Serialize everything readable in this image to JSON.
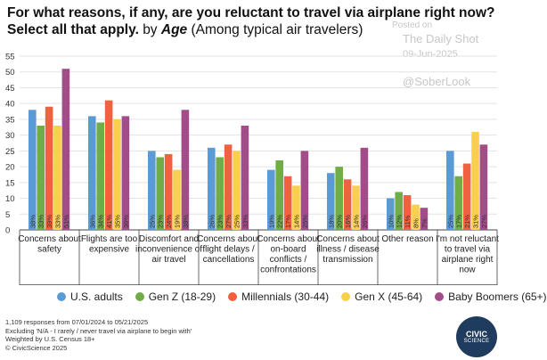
{
  "title": {
    "main": "For what reasons, if any, are you reluctant to travel via airplane right now? Select all that apply.",
    "by": "by",
    "age_word": "Age",
    "subtitle": "(Among typical air travelers)"
  },
  "watermarks": {
    "posted_on": "Posted on",
    "source": "The Daily Shot",
    "date": "09-Jun-2025",
    "handle": "@SoberLook"
  },
  "legend": [
    {
      "name": "U.S. adults",
      "color": "#5b9bd5"
    },
    {
      "name": "Gen Z (18-29)",
      "color": "#70ad47"
    },
    {
      "name": "Millennials (30-44)",
      "color": "#f0613f"
    },
    {
      "name": "Gen X (45-64)",
      "color": "#f8cf4f"
    },
    {
      "name": "Baby Boomers (65+)",
      "color": "#a24d8a"
    }
  ],
  "notes": [
    "1,109 responses from 07/01/2024 to 05/21/2025",
    "Excluding 'N/A - I rarely / never travel via airplane to begin with'",
    "Weighted by U.S. Census 18+",
    "© CivicScience 2025"
  ],
  "logo": {
    "line1": "CIVIC",
    "line2": "SCIENCE"
  },
  "chart_data": {
    "type": "bar",
    "ylim": [
      0,
      55
    ],
    "yticks": [
      0,
      5,
      10,
      15,
      20,
      25,
      30,
      35,
      40,
      45,
      50,
      55
    ],
    "grid": true,
    "legend_position": "bottom",
    "categories": [
      [
        "Concerns about",
        "safety"
      ],
      [
        "Flights are too",
        "expensive"
      ],
      [
        "Discomfort and",
        "inconvenience of",
        "air travel"
      ],
      [
        "Concerns about",
        "flight delays /",
        "cancellations"
      ],
      [
        "Concerns about",
        "on-board",
        "conflicts /",
        "confrontations"
      ],
      [
        "Concerns about",
        "illness / disease",
        "transmission"
      ],
      [
        "Other reason"
      ],
      [
        "I'm not reluctant",
        "to travel via",
        "airplane right",
        "now"
      ]
    ],
    "series": [
      {
        "name": "U.S. adults",
        "color": "#5b9bd5",
        "values": [
          38,
          36,
          25,
          26,
          19,
          18,
          10,
          25
        ],
        "labels": [
          "38%",
          "36%",
          "25%",
          "26%",
          "19%",
          "18%",
          "10%",
          "25%"
        ]
      },
      {
        "name": "Gen Z (18-29)",
        "color": "#70ad47",
        "values": [
          33,
          34,
          23,
          23,
          22,
          20,
          12,
          17
        ],
        "labels": [
          "33%",
          "34%",
          "23%",
          "23%",
          "22%",
          "20%",
          "12%",
          "17%"
        ]
      },
      {
        "name": "Millennials (30-44)",
        "color": "#f0613f",
        "values": [
          39,
          41,
          24,
          27,
          17,
          16,
          11,
          21
        ],
        "labels": [
          "39%",
          "41%",
          "24%",
          "27%",
          "17%",
          "16%",
          "11%",
          "21%"
        ]
      },
      {
        "name": "Gen X (45-64)",
        "color": "#f8cf4f",
        "values": [
          33,
          35,
          19,
          25,
          14,
          14,
          8,
          31
        ],
        "labels": [
          "33%",
          "35%",
          "19%",
          "25%",
          "14%",
          "14%",
          "8%",
          "31%"
        ]
      },
      {
        "name": "Baby Boomers (65+)",
        "color": "#a24d8a",
        "values": [
          51,
          36,
          38,
          33,
          25,
          26,
          7,
          27
        ],
        "labels": [
          "51%",
          "36%",
          "38%",
          "33%",
          "25%",
          "26%",
          "7%",
          "27%"
        ]
      }
    ]
  }
}
